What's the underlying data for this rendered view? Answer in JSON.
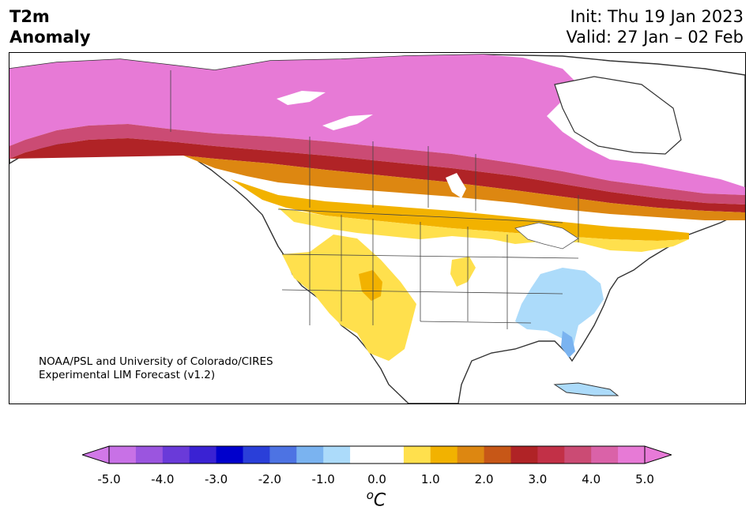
{
  "title": {
    "left_line1": "T2m",
    "left_line2": "Anomaly",
    "init": "Init: Thu 19 Jan 2023",
    "valid": "Valid: 27 Jan – 02 Feb"
  },
  "credit": {
    "line1": "NOAA/PSL and University of Colorado/CIRES",
    "line2": "Experimental LIM Forecast (v1.2)"
  },
  "map": {
    "region": "North America",
    "variable": "2 m temperature anomaly"
  },
  "colorbar": {
    "units_symbol": "o",
    "units_letter": "C",
    "ticks": [
      "-5.0",
      "-4.0",
      "-3.0",
      "-2.0",
      "-1.0",
      "0.0",
      "1.0",
      "2.0",
      "3.0",
      "4.0",
      "5.0"
    ],
    "under_color": "#d178e8",
    "over_color": "#e87ad8",
    "colors": [
      "#c871e6",
      "#9b55df",
      "#6a3ad9",
      "#3a22d3",
      "#0000cc",
      "#2a3fd9",
      "#4d73e3",
      "#7ab3f0",
      "#acdbfa",
      "#ffffff",
      "#ffffff",
      "#ffe04d",
      "#f2b200",
      "#dd8711",
      "#c75717",
      "#b02326",
      "#c23047",
      "#cb4b74",
      "#da62a8",
      "#e77ad6"
    ]
  }
}
